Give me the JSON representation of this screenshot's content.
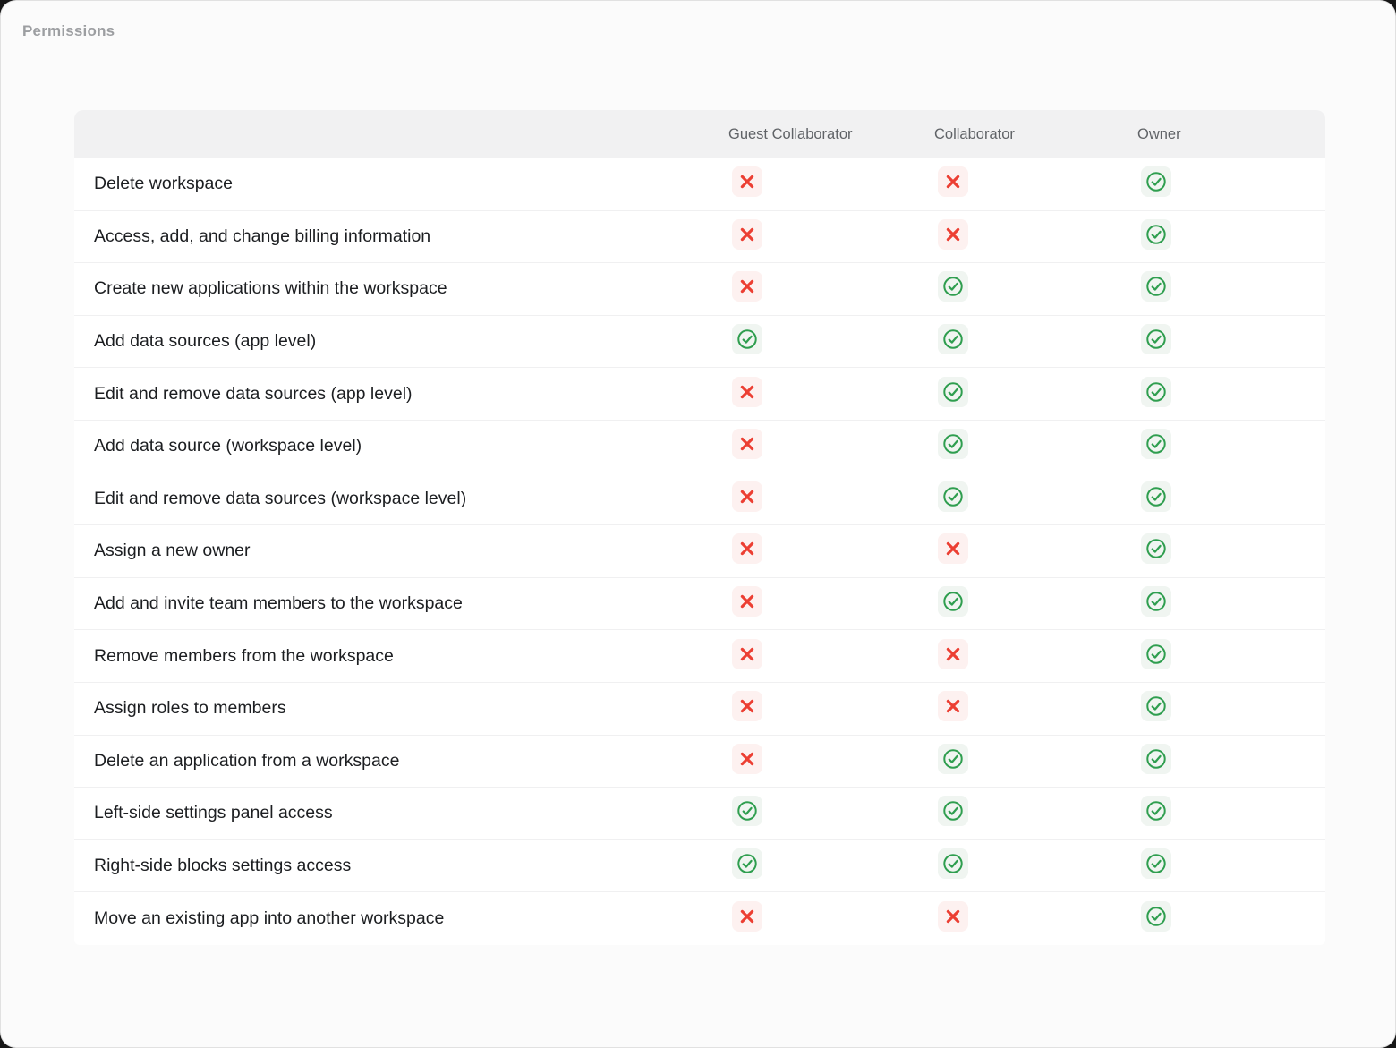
{
  "page": {
    "title": "Permissions"
  },
  "table": {
    "columns": [
      "Guest Collaborator",
      "Collaborator",
      "Owner"
    ],
    "legend": {
      "allowed_icon": "check-circle-icon",
      "denied_icon": "cross-icon"
    },
    "rows": [
      {
        "label": "Delete workspace",
        "permissions": [
          "denied",
          "denied",
          "allowed"
        ]
      },
      {
        "label": "Access, add, and change billing information",
        "permissions": [
          "denied",
          "denied",
          "allowed"
        ]
      },
      {
        "label": "Create new applications within the workspace",
        "permissions": [
          "denied",
          "allowed",
          "allowed"
        ]
      },
      {
        "label": "Add data sources (app level)",
        "permissions": [
          "allowed",
          "allowed",
          "allowed"
        ]
      },
      {
        "label": "Edit and remove data sources (app level)",
        "permissions": [
          "denied",
          "allowed",
          "allowed"
        ]
      },
      {
        "label": "Add data source (workspace level)",
        "permissions": [
          "denied",
          "allowed",
          "allowed"
        ]
      },
      {
        "label": "Edit and remove data sources (workspace level)",
        "permissions": [
          "denied",
          "allowed",
          "allowed"
        ]
      },
      {
        "label": "Assign a new owner",
        "permissions": [
          "denied",
          "denied",
          "allowed"
        ]
      },
      {
        "label": "Add and invite team members to the workspace",
        "permissions": [
          "denied",
          "allowed",
          "allowed"
        ]
      },
      {
        "label": "Remove members from the workspace",
        "permissions": [
          "denied",
          "denied",
          "allowed"
        ]
      },
      {
        "label": "Assign roles to members",
        "permissions": [
          "denied",
          "denied",
          "allowed"
        ]
      },
      {
        "label": "Delete an application from a workspace",
        "permissions": [
          "denied",
          "allowed",
          "allowed"
        ]
      },
      {
        "label": "Left-side settings panel access",
        "permissions": [
          "allowed",
          "allowed",
          "allowed"
        ]
      },
      {
        "label": "Right-side blocks settings access",
        "permissions": [
          "allowed",
          "allowed",
          "allowed"
        ]
      },
      {
        "label": "Move an existing app into another workspace",
        "permissions": [
          "denied",
          "denied",
          "allowed"
        ]
      }
    ]
  },
  "colors": {
    "allowed_green": "#2f9e4f",
    "allowed_bg": "#f0f5f1",
    "denied_red": "#ec3f33",
    "denied_bg": "#fdf1f0"
  }
}
